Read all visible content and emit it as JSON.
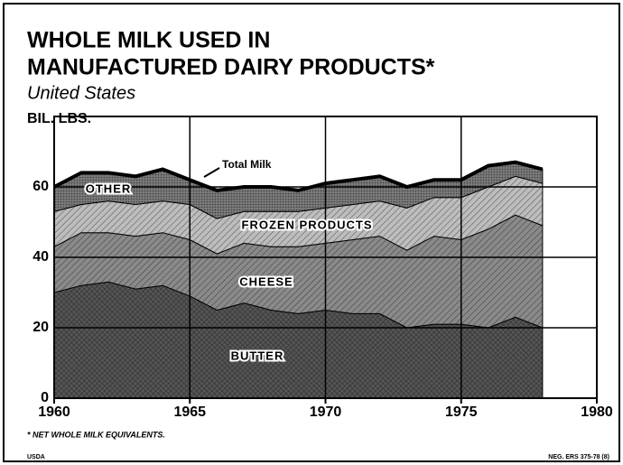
{
  "chart_data": {
    "type": "stacked_area",
    "title": [
      "WHOLE MILK USED IN",
      "MANUFACTURED DAIRY PRODUCTS*"
    ],
    "subtitle": "United States",
    "y_label": "BIL. LBS.",
    "x": [
      1960,
      1961,
      1962,
      1963,
      1964,
      1965,
      1966,
      1967,
      1968,
      1969,
      1970,
      1971,
      1972,
      1973,
      1974,
      1975,
      1976,
      1977,
      1978
    ],
    "series": [
      {
        "name": "BUTTER",
        "color": "#555555",
        "values": [
          30,
          32,
          33,
          31,
          32,
          29,
          25,
          27,
          25,
          24,
          25,
          24,
          24,
          20,
          21,
          21,
          20,
          23,
          20
        ]
      },
      {
        "name": "CHEESE",
        "color": "#8a8a8a",
        "values": [
          13,
          15,
          14,
          15,
          15,
          16,
          16,
          17,
          18,
          19,
          19,
          21,
          22,
          22,
          25,
          24,
          28,
          29,
          29
        ]
      },
      {
        "name": "FROZEN PRODUCTS",
        "color": "#bdbdbd",
        "values": [
          10,
          8,
          9,
          9,
          9,
          10,
          10,
          9,
          10,
          10,
          10,
          10,
          10,
          12,
          11,
          12,
          12,
          11,
          12
        ]
      },
      {
        "name": "OTHER",
        "color": "#7a7a7a",
        "values": [
          7,
          9,
          8,
          8,
          9,
          7,
          8,
          7,
          7,
          6,
          7,
          7,
          7,
          6,
          5,
          5,
          6,
          4,
          4
        ]
      }
    ],
    "annotation": "Total Milk",
    "xlim": [
      1960,
      1980
    ],
    "xticks": [
      1960,
      1965,
      1970,
      1975,
      1980
    ],
    "ylim": [
      0,
      80
    ],
    "yticks": [
      0,
      20,
      40,
      60
    ],
    "grid": true,
    "footnote": "* NET WHOLE MILK EQUIVALENTS.",
    "source": "USDA",
    "code": "NEG. ERS 375-78 (8)"
  }
}
